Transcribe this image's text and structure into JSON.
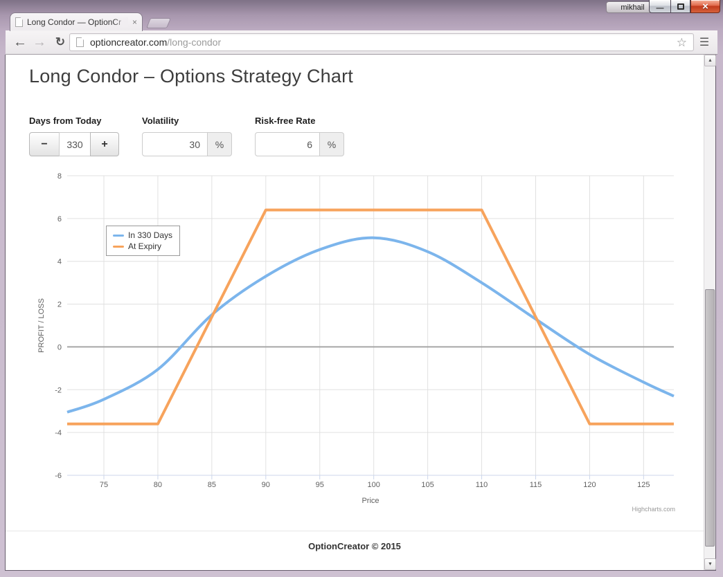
{
  "window": {
    "user_label": "mikhail"
  },
  "browser": {
    "tab_title": "Long Condor — OptionCr",
    "url_host": "optioncreator.com",
    "url_path": "/long-condor"
  },
  "icons": {
    "back": "←",
    "forward": "→",
    "reload": "↻",
    "star": "☆",
    "menu": "☰",
    "tab_close": "×",
    "window_min": "—",
    "window_close": "×",
    "scroll_up": "▲",
    "scroll_down": "▼"
  },
  "page": {
    "heading": "Long Condor – Options Strategy Chart",
    "footer": "OptionCreator © 2015",
    "controls": [
      {
        "label": "Days from Today",
        "type": "stepper",
        "minus_label": "−",
        "plus_label": "+",
        "value": "330"
      },
      {
        "label": "Volatility",
        "type": "input-addon",
        "value": "30",
        "suffix": "%"
      },
      {
        "label": "Risk-free Rate",
        "type": "input-addon",
        "value": "6",
        "suffix": "%"
      }
    ]
  },
  "chart_data": {
    "type": "line",
    "xlabel": "Price",
    "ylabel": "PROFIT / LOSS",
    "x_ticks": [
      75,
      80,
      85,
      90,
      95,
      100,
      105,
      110,
      115,
      120,
      125
    ],
    "y_ticks": [
      -6,
      -4,
      -2,
      0,
      2,
      4,
      6,
      8
    ],
    "xlim": [
      71.6,
      127.8
    ],
    "ylim": [
      -6,
      8
    ],
    "grid": true,
    "zero_line": true,
    "legend_position": "top-left-inside",
    "credit": "Highcharts.com",
    "series": [
      {
        "name": "In 330 Days",
        "color": "#7cb5ec",
        "smooth": true,
        "x": [
          71.6,
          75,
          80,
          85,
          90,
          95,
          100,
          105,
          110,
          115,
          120,
          125,
          127.8
        ],
        "y": [
          -3.05,
          -2.45,
          -1.05,
          1.5,
          3.3,
          4.55,
          5.1,
          4.45,
          3.0,
          1.3,
          -0.35,
          -1.65,
          -2.3
        ]
      },
      {
        "name": "At Expiry",
        "color": "#f7a35c",
        "smooth": false,
        "x": [
          71.6,
          80,
          90,
          110,
          120,
          127.8
        ],
        "y": [
          -3.6,
          -3.6,
          6.4,
          6.4,
          -3.6,
          -3.6
        ]
      }
    ]
  }
}
